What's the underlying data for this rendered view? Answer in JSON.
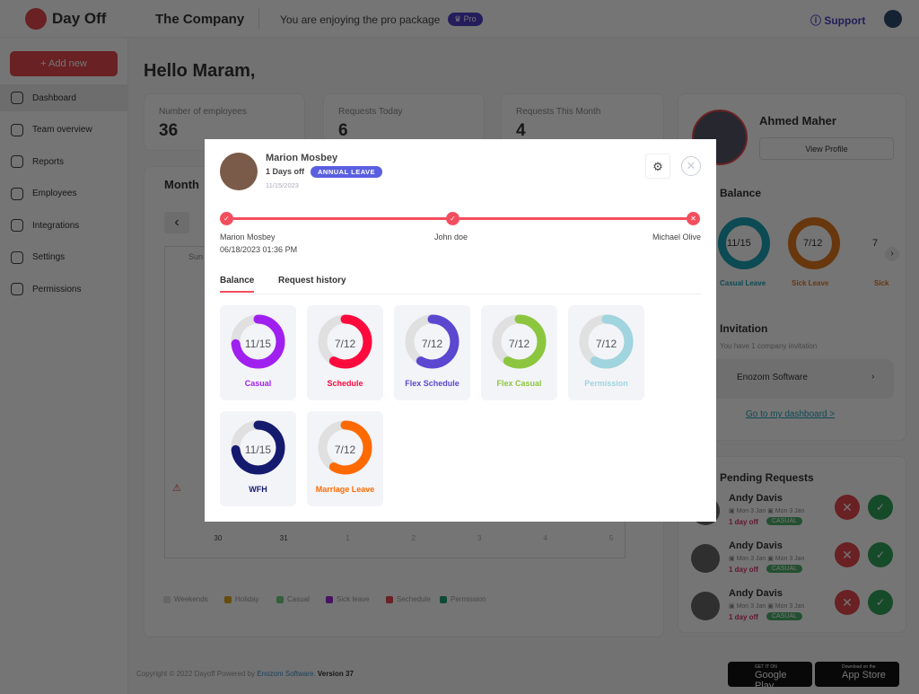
{
  "header": {
    "app_name": "Day Off",
    "company": "The Company",
    "pro_text": "You are enjoying the pro package",
    "pro_badge": "Pro",
    "support": "Support"
  },
  "sidebar": {
    "add_new": "+ Add new",
    "items": [
      {
        "label": "Dashboard",
        "icon": "home-icon",
        "active": true
      },
      {
        "label": "Team overview",
        "icon": "calendar-icon"
      },
      {
        "label": "Reports",
        "icon": "pie-chart-icon"
      },
      {
        "label": "Employees",
        "icon": "user-icon"
      },
      {
        "label": "Integrations",
        "icon": "plug-icon"
      },
      {
        "label": "Settings",
        "icon": "gear-icon"
      },
      {
        "label": "Permissions",
        "icon": "shield-icon"
      }
    ]
  },
  "main": {
    "greeting": "Hello Maram,",
    "stats": [
      {
        "label": "Number of employees",
        "value": "36"
      },
      {
        "label": "Requests Today",
        "value": "6"
      },
      {
        "label": "Requests This Month",
        "value": "4"
      }
    ],
    "calendar": {
      "title": "Month",
      "first_day": "Sun",
      "last_row": [
        "30",
        "31",
        "1",
        "2",
        "3",
        "4",
        "5"
      ],
      "legend": [
        {
          "label": "Weekends",
          "color": "#e0e0e0"
        },
        {
          "label": "Holiday",
          "color": "#e0a81c"
        },
        {
          "label": "Casual",
          "color": "#6fd07e"
        },
        {
          "label": "Sick leave",
          "color": "#9a2ad0"
        },
        {
          "label": "Sechedule",
          "color": "#e5484d"
        },
        {
          "label": "Permission",
          "color": "#20a070"
        }
      ]
    }
  },
  "profile": {
    "name": "Ahmed Maher",
    "view_profile": "View Profile",
    "balance_title": "Balance",
    "balances": [
      {
        "value": "11/15",
        "label": "Casual Leave",
        "color": "#1aa3b5"
      },
      {
        "value": "7/12",
        "label": "Sick Leave",
        "color": "#e3781c"
      },
      {
        "value": "7",
        "label": "Sick",
        "color": "#e3781c"
      }
    ],
    "invitation_title": "Invitation",
    "invitation_text": "You have 1 company invitation",
    "invitation_company": "Enozom Software",
    "dashboard_link": "Go to my dashboard >"
  },
  "pending": {
    "title": "Pending Requests",
    "items": [
      {
        "name": "Andy Davis",
        "from": "Mon 3 Jan",
        "to": "Mon 3 Jan",
        "off": "1 day off",
        "type": "CASUAL"
      },
      {
        "name": "Andy Davis",
        "from": "Mon 3 Jan",
        "to": "Mon 3 Jan",
        "off": "1 day off",
        "type": "CASUAL"
      },
      {
        "name": "Andy Davis",
        "from": "Mon 3 Jan",
        "to": "Mon 3 Jan",
        "off": "1 day off",
        "type": "CASUAL"
      }
    ]
  },
  "footer": {
    "copyright": "Copyright © 2022 Dayoff  Powered by",
    "powered": "Enozom Software.",
    "version": "Version  37",
    "google_small": "GET IT ON",
    "google": "Google Play",
    "apple_small": "Download on the",
    "apple": "App Store"
  },
  "modal": {
    "name": "Marion Mosbey",
    "days": "1 Days off",
    "type": "ANNUAL LEAVE",
    "date": "11/15/2023",
    "steps": [
      {
        "name": "Marion Mosbey",
        "time": "06/18/2023 01:36 PM",
        "status": "approved"
      },
      {
        "name": "John doe",
        "status": "approved"
      },
      {
        "name": "Michael Olive",
        "status": "rejected"
      }
    ],
    "tabs": [
      "Balance",
      "Request history"
    ],
    "active_tab": "Balance",
    "balances": [
      {
        "used": 11,
        "total": 15,
        "value": "11/15",
        "label": "Casual",
        "color": "#a020f0"
      },
      {
        "used": 7,
        "total": 12,
        "value": "7/12",
        "label": "Schedule",
        "color": "#ff0a3c"
      },
      {
        "used": 7,
        "total": 12,
        "value": "7/12",
        "label": "Flex Schedule",
        "color": "#5a48d0"
      },
      {
        "used": 7,
        "total": 12,
        "value": "7/12",
        "label": "Flex Casual",
        "color": "#8cc63f"
      },
      {
        "used": 7,
        "total": 12,
        "value": "7/12",
        "label": "Permission",
        "color": "#a0d4de"
      },
      {
        "used": 11,
        "total": 15,
        "value": "11/15",
        "label": "WFH",
        "color": "#141a6e"
      },
      {
        "used": 7,
        "total": 12,
        "value": "7/12",
        "label": "Marriage Leave",
        "color": "#ff6a00"
      }
    ]
  }
}
